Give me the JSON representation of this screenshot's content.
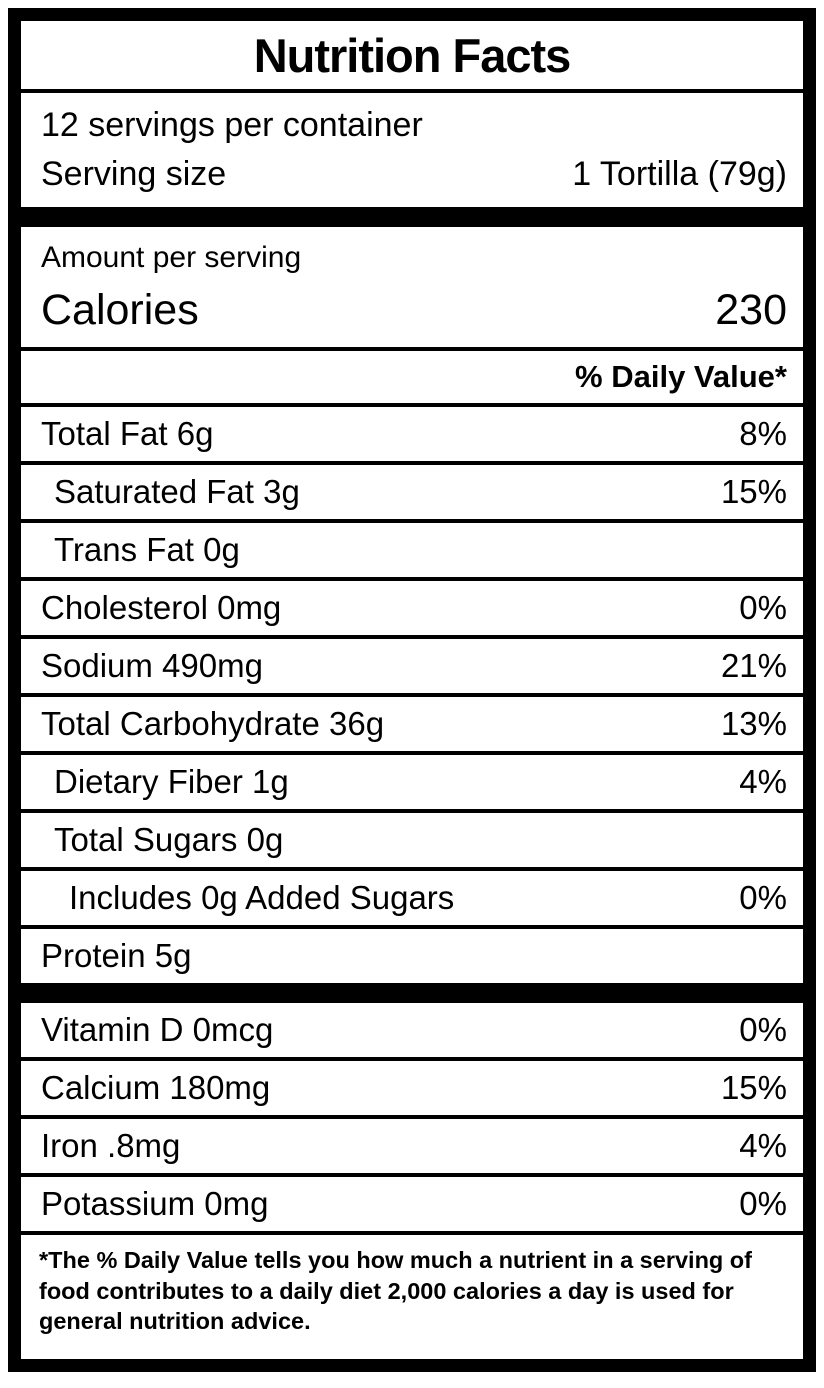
{
  "header": {
    "title": "Nutrition Facts"
  },
  "serving_info": {
    "servings_per_container": "12 servings per container",
    "serving_size_label": "Serving size",
    "serving_size_value": "1 Tortilla (79g)"
  },
  "calories": {
    "amount_per_serving_label": "Amount per serving",
    "label": "Calories",
    "value": "230"
  },
  "daily_value_header": "% Daily Value*",
  "nutrients": [
    {
      "name": "Total Fat 6g",
      "daily_value": "8%"
    },
    {
      "name": "Saturated Fat 3g",
      "daily_value": "15%"
    },
    {
      "name": "Trans Fat 0g",
      "daily_value": ""
    },
    {
      "name": "Cholesterol 0mg",
      "daily_value": "0%"
    },
    {
      "name": "Sodium 490mg",
      "daily_value": "21%"
    },
    {
      "name": "Total Carbohydrate 36g",
      "daily_value": "13%"
    },
    {
      "name": "Dietary Fiber 1g",
      "daily_value": "4%"
    },
    {
      "name": "Total Sugars 0g",
      "daily_value": ""
    },
    {
      "name": "Includes 0g Added Sugars",
      "daily_value": "0%"
    },
    {
      "name": "Protein 5g",
      "daily_value": ""
    }
  ],
  "vitamins": [
    {
      "name": "Vitamin D 0mcg",
      "daily_value": "0%"
    },
    {
      "name": "Calcium 180mg",
      "daily_value": "15%"
    },
    {
      "name": "Iron .8mg",
      "daily_value": "4%"
    },
    {
      "name": "Potassium 0mg",
      "daily_value": "0%"
    }
  ],
  "footnote": "*The % Daily Value tells you how much a nutrient in a serving of food contributes to a daily diet 2,000 calories a day is used for general nutrition advice.",
  "colors": {
    "text": "#000000",
    "background": "#ffffff",
    "frame": "#000000"
  }
}
